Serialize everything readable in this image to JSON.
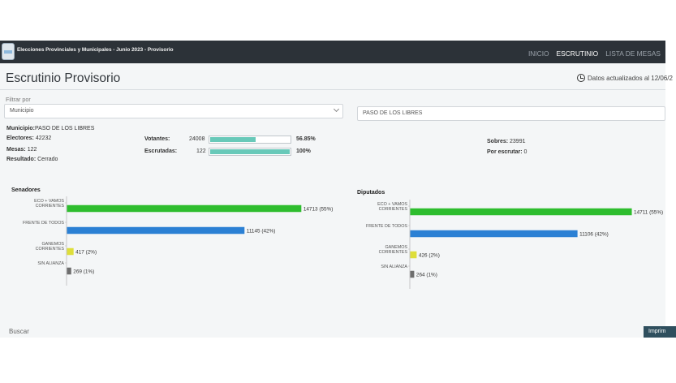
{
  "header": {
    "app_title": "Elecciones Provinciales y Municipales - Junio 2023 - Provisorio",
    "nav": [
      "INICIO",
      "ESCRUTINIO",
      "LISTA DE MESAS"
    ],
    "active_nav": "ESCRUTINIO"
  },
  "page": {
    "title": "Escrutinio Provisorio",
    "updated": "Datos actualizados al 12/06/2"
  },
  "filter": {
    "label": "Filtrar por",
    "type_value": "Municipio",
    "town_value": "PASO DE LOS LIBRES"
  },
  "summary": {
    "municipio_label": "Municipio:",
    "municipio_value": "PASO DE LOS LIBRES",
    "electores_label": "Electores:",
    "electores_value": "42232",
    "mesas_label": "Mesas:",
    "mesas_value": "122",
    "resultado_label": "Resultado:",
    "resultado_value": "Cerrado",
    "votantes_label": "Votantes:",
    "votantes_value": "24008",
    "votantes_pct": "56.85%",
    "votantes_fill": 0.5685,
    "escrutadas_label": "Escrutadas:",
    "escrutadas_value": "122",
    "escrutadas_pct": "100%",
    "escrutadas_fill": 1.0,
    "sobres_label": "Sobres:",
    "sobres_value": "23991",
    "por_escrutar_label": "Por escrutar:",
    "por_escrutar_value": "0"
  },
  "colors": {
    "eco": "#2ebd2e",
    "frente": "#2b80d4",
    "ganemos": "#dede3a",
    "sin_alianza": "#6e6e6e",
    "progress": "#68c9b9",
    "navbar": "#2c3238"
  },
  "chart_data": [
    {
      "type": "bar",
      "orientation": "horizontal",
      "title": "Senadores",
      "categories": [
        [
          "ECO + VAMOS",
          "CORRIENTES"
        ],
        [
          "FRENTE DE TODOS"
        ],
        [
          "GANEMOS",
          "CORRIENTES"
        ],
        [
          "SIN ALIANZA"
        ]
      ],
      "values": [
        14713,
        11145,
        417,
        269
      ],
      "data_labels": [
        "14713 (55%)",
        "11145 (42%)",
        "417 (2%)",
        "269 (1%)"
      ],
      "colors": [
        "#2ebd2e",
        "#2b80d4",
        "#dede3a",
        "#6e6e6e"
      ],
      "xlim": [
        0,
        15500
      ]
    },
    {
      "type": "bar",
      "orientation": "horizontal",
      "title": "Diputados",
      "categories": [
        [
          "ECO + VAMOS",
          "CORRIENTES"
        ],
        [
          "FRENTE DE TODOS"
        ],
        [
          "GANEMOS",
          "CORRIENTES"
        ],
        [
          "SIN ALIANZA"
        ]
      ],
      "values": [
        14711,
        11106,
        426,
        264
      ],
      "data_labels": [
        "14711 (55%)",
        "11106 (42%)",
        "426 (2%)",
        "264 (1%)"
      ],
      "colors": [
        "#2ebd2e",
        "#2b80d4",
        "#dede3a",
        "#6e6e6e"
      ],
      "xlim": [
        0,
        15500
      ]
    }
  ],
  "footer": {
    "search_label": "Buscar",
    "print_label": "Imprim"
  }
}
